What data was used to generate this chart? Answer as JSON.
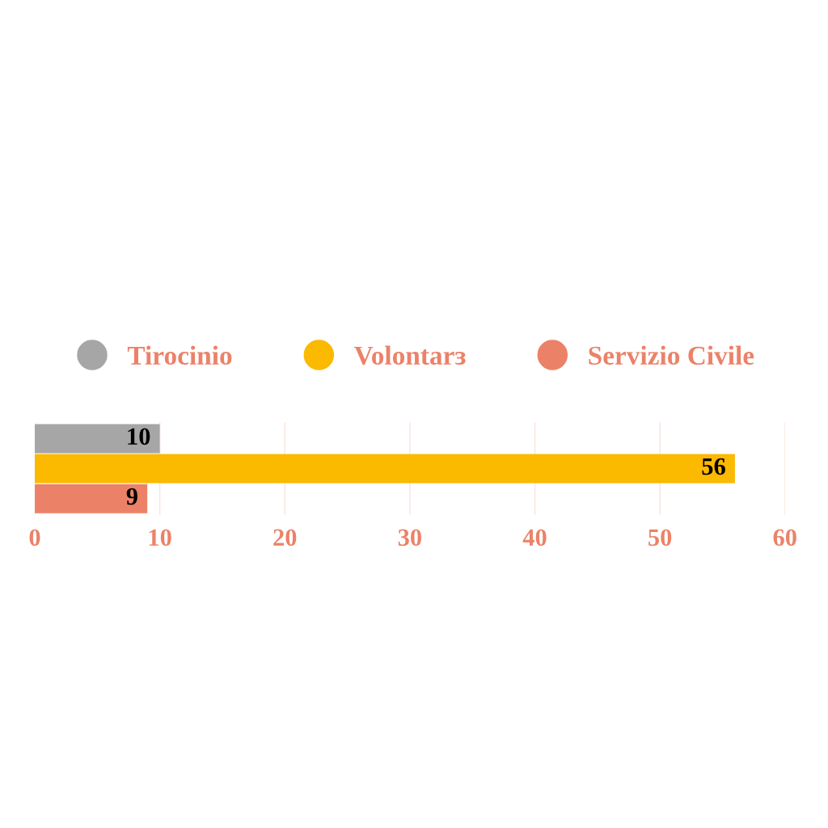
{
  "chart_data": {
    "type": "bar",
    "orientation": "horizontal",
    "categories": [
      null
    ],
    "series": [
      {
        "name": "Tirocinio",
        "color": "#a6a6a6",
        "values": [
          10
        ]
      },
      {
        "name": "Volontarɜ",
        "color": "#fbb900",
        "values": [
          56
        ]
      },
      {
        "name": "Servizio Civile",
        "color": "#eb8268",
        "values": [
          9
        ]
      }
    ],
    "xlim": [
      0,
      60
    ],
    "xticks": [
      0,
      10,
      20,
      30,
      40,
      50,
      60
    ],
    "grid": "x",
    "legend": "top",
    "data_labels": true
  }
}
